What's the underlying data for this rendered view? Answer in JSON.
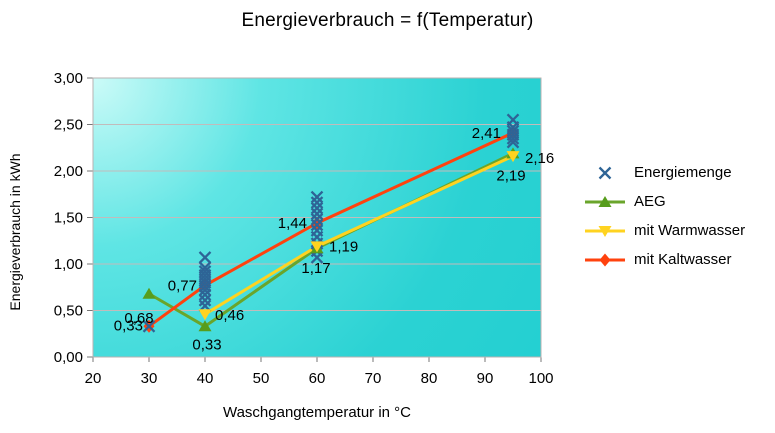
{
  "chart_data": {
    "type": "line",
    "title": "Energieverbrauch = f(Temperatur)",
    "xlabel": "Waschgangtemperatur in °C",
    "ylabel": "Energieverbrauch in kWh",
    "xlim": [
      20,
      100
    ],
    "ylim": [
      0,
      3
    ],
    "x_ticks": [
      20,
      30,
      40,
      50,
      60,
      70,
      80,
      90,
      100
    ],
    "y_ticks": [
      0,
      0.5,
      1,
      1.5,
      2,
      2.5,
      3
    ],
    "y_tick_labels": [
      "0,00",
      "0,50",
      "1,00",
      "1,50",
      "2,00",
      "2,50",
      "3,00"
    ],
    "grid": "horizontal",
    "legend_position": "right",
    "plot_style": {
      "bg_gradient": [
        "#ccfbf8",
        "#5fe5e4",
        "#2bd2d3",
        "#22cfd1"
      ],
      "grid_color": "#c2bbbb",
      "border_color": "#b9b2b2",
      "tick_color": "#777777",
      "label_color": "#000000"
    },
    "series": [
      {
        "name": "Energiemenge",
        "type": "scatter",
        "marker": "x",
        "color": "#2e6496",
        "points": [
          [
            30,
            0.33
          ],
          [
            40,
            1.07
          ],
          [
            40,
            0.96
          ],
          [
            40,
            0.92
          ],
          [
            40,
            0.88
          ],
          [
            40,
            0.84
          ],
          [
            40,
            0.8
          ],
          [
            40,
            0.76
          ],
          [
            40,
            0.72
          ],
          [
            40,
            0.67
          ],
          [
            40,
            0.61
          ],
          [
            40,
            0.55
          ],
          [
            60,
            1.72
          ],
          [
            60,
            1.66
          ],
          [
            60,
            1.6
          ],
          [
            60,
            1.54
          ],
          [
            60,
            1.48
          ],
          [
            60,
            1.42
          ],
          [
            60,
            1.36
          ],
          [
            60,
            1.29
          ],
          [
            60,
            1.22
          ],
          [
            60,
            1.14
          ],
          [
            60,
            1.07
          ],
          [
            95,
            2.55
          ],
          [
            95,
            2.47
          ],
          [
            95,
            2.43
          ],
          [
            95,
            2.39
          ],
          [
            95,
            2.35
          ],
          [
            95,
            2.31
          ]
        ]
      },
      {
        "name": "AEG",
        "type": "line",
        "marker": "triangle-up",
        "color": "#6aa52b",
        "marker_color": "#579d1c",
        "points": [
          [
            30,
            0.68
          ],
          [
            40,
            0.33
          ],
          [
            60,
            1.17
          ],
          [
            95,
            2.19
          ]
        ],
        "labels": [
          {
            "text": "0,68",
            "dx": -10,
            "dy": 29,
            "anchor": "middle"
          },
          {
            "text": "0,33",
            "dx": 2,
            "dy": 23,
            "anchor": "middle"
          },
          {
            "text": "1,17",
            "dx": -1,
            "dy": 25,
            "anchor": "middle"
          },
          {
            "text": "2,19",
            "dx": -2,
            "dy": 27,
            "anchor": "middle"
          }
        ]
      },
      {
        "name": "mit Warmwasser",
        "type": "line",
        "marker": "triangle-down",
        "color": "#ffd320",
        "marker_color": "#ffd320",
        "points": [
          [
            40,
            0.46
          ],
          [
            60,
            1.19
          ],
          [
            95,
            2.16
          ]
        ],
        "labels": [
          {
            "text": "0,46",
            "dx": 10,
            "dy": 6,
            "anchor": "start"
          },
          {
            "text": "1,19",
            "dx": 12,
            "dy": 5,
            "anchor": "start"
          },
          {
            "text": "2,16",
            "dx": 12,
            "dy": 7,
            "anchor": "start"
          }
        ]
      },
      {
        "name": "mit Kaltwasser",
        "type": "line",
        "marker": "diamond",
        "color": "#ff420e",
        "marker_color": "#ff420e",
        "points": [
          [
            30,
            0.33
          ],
          [
            40,
            0.77
          ],
          [
            60,
            1.44
          ],
          [
            95,
            2.41
          ]
        ],
        "labels": [
          {
            "text": "0,33",
            "dx": -6,
            "dy": 4,
            "anchor": "end"
          },
          {
            "text": "0,77",
            "dx": -8,
            "dy": 5,
            "anchor": "end"
          },
          {
            "text": "1,44",
            "dx": -10,
            "dy": 5,
            "anchor": "end"
          },
          {
            "text": "2,41",
            "dx": -12,
            "dy": 5,
            "anchor": "end"
          }
        ]
      }
    ]
  }
}
